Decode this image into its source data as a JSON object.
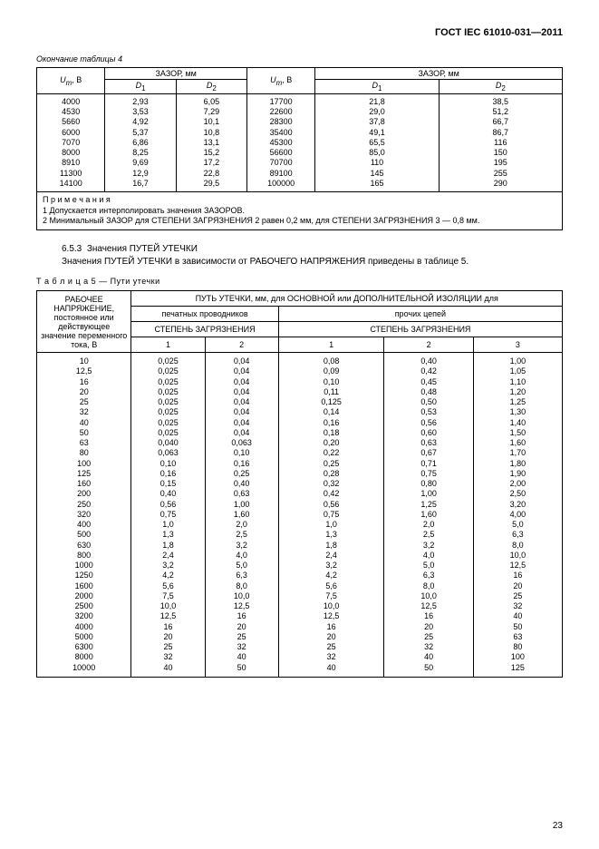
{
  "doc_header": "ГОСТ IEC 61010-031—2011",
  "table4": {
    "caption": "Окончание таблицы 4",
    "col_u": "U",
    "col_u_sub": "m",
    "col_u_unit": ", В",
    "col_gap": "ЗАЗОР, мм",
    "col_d1": "D",
    "col_d1_sub": "1",
    "col_d2": "D",
    "col_d2_sub": "2",
    "rows": [
      [
        "4000",
        "2,93",
        "6,05",
        "17700",
        "21,8",
        "38,5"
      ],
      [
        "4530",
        "3,53",
        "7,29",
        "22600",
        "29,0",
        "51,2"
      ],
      [
        "5660",
        "4,92",
        "10,1",
        "28300",
        "37,8",
        "66,7"
      ],
      [
        "6000",
        "5,37",
        "10,8",
        "35400",
        "49,1",
        "86,7"
      ],
      [
        "7070",
        "6,86",
        "13,1",
        "45300",
        "65,5",
        "116"
      ],
      [
        "8000",
        "8,25",
        "15,2",
        "56600",
        "85,0",
        "150"
      ],
      [
        "8910",
        "9,69",
        "17,2",
        "70700",
        "110",
        "195"
      ],
      [
        "11300",
        "12,9",
        "22,8",
        "89100",
        "145",
        "255"
      ],
      [
        "14100",
        "16,7",
        "29,5",
        "100000",
        "165",
        "290"
      ]
    ],
    "notes_title": "П р и м е ч а н и я",
    "note1": "1 Допускается интерполировать значения ЗАЗОРОВ.",
    "note2": "2 Минимальный ЗАЗОР для СТЕПЕНИ ЗАГРЯЗНЕНИЯ 2 равен 0,2 мм, для СТЕПЕНИ ЗАГРЯЗНЕНИЯ 3 — 0,8 мм."
  },
  "section": {
    "num": "6.5.3",
    "title": "Значения ПУТЕЙ УТЕЧКИ",
    "body": "Значения ПУТЕЙ УТЕЧКИ в зависимости от РАБОЧЕГО НАПРЯЖЕНИЯ приведены в таблице 5."
  },
  "table5": {
    "caption": "Т а б л и ц а  5 — Пути утечки",
    "h_voltage": "РАБОЧЕЕ НАПРЯЖЕНИЕ, постоянное или действующее значение переменного тока, В",
    "h_top": "ПУТЬ УТЕЧКИ, мм, для ОСНОВНОЙ или ДОПОЛНИТЕЛЬНОЙ ИЗОЛЯЦИИ для",
    "h_printed": "печатных проводников",
    "h_other": "прочих цепей",
    "h_pollution": "СТЕПЕНЬ ЗАГРЯЗНЕНИЯ",
    "cols": [
      "1",
      "2",
      "1",
      "2",
      "3"
    ],
    "rows": [
      [
        "10",
        "0,025",
        "0,04",
        "0,08",
        "0,40",
        "1,00"
      ],
      [
        "12,5",
        "0,025",
        "0,04",
        "0,09",
        "0,42",
        "1,05"
      ],
      [
        "16",
        "0,025",
        "0,04",
        "0,10",
        "0,45",
        "1,10"
      ],
      [
        "20",
        "0,025",
        "0,04",
        "0,11",
        "0,48",
        "1,20"
      ],
      [
        "25",
        "0,025",
        "0,04",
        "0,125",
        "0,50",
        "1,25"
      ],
      [
        "32",
        "0,025",
        "0,04",
        "0,14",
        "0,53",
        "1,30"
      ],
      [
        "40",
        "0,025",
        "0,04",
        "0,16",
        "0,56",
        "1,40"
      ],
      [
        "50",
        "0,025",
        "0,04",
        "0,18",
        "0,60",
        "1,50"
      ],
      [
        "63",
        "0,040",
        "0,063",
        "0,20",
        "0,63",
        "1,60"
      ],
      [
        "80",
        "0,063",
        "0,10",
        "0,22",
        "0,67",
        "1,70"
      ],
      [
        "100",
        "0,10",
        "0,16",
        "0,25",
        "0,71",
        "1,80"
      ],
      [
        "125",
        "0,16",
        "0,25",
        "0,28",
        "0,75",
        "1,90"
      ],
      [
        "160",
        "0,15",
        "0,40",
        "0,32",
        "0,80",
        "2,00"
      ],
      [
        "200",
        "0,40",
        "0,63",
        "0,42",
        "1,00",
        "2,50"
      ],
      [
        "250",
        "0,56",
        "1,00",
        "0,56",
        "1,25",
        "3,20"
      ],
      [
        "320",
        "0,75",
        "1,60",
        "0,75",
        "1,60",
        "4,00"
      ],
      [
        "400",
        "1,0",
        "2,0",
        "1,0",
        "2,0",
        "5,0"
      ],
      [
        "500",
        "1,3",
        "2,5",
        "1,3",
        "2,5",
        "6,3"
      ],
      [
        "630",
        "1,8",
        "3,2",
        "1,8",
        "3,2",
        "8,0"
      ],
      [
        "800",
        "2,4",
        "4,0",
        "2,4",
        "4,0",
        "10,0"
      ],
      [
        "1000",
        "3,2",
        "5,0",
        "3,2",
        "5,0",
        "12,5"
      ],
      [
        "1250",
        "4,2",
        "6,3",
        "4,2",
        "6,3",
        "16"
      ],
      [
        "1600",
        "5,6",
        "8,0",
        "5,6",
        "8,0",
        "20"
      ],
      [
        "2000",
        "7,5",
        "10,0",
        "7,5",
        "10,0",
        "25"
      ],
      [
        "2500",
        "10,0",
        "12,5",
        "10,0",
        "12,5",
        "32"
      ],
      [
        "3200",
        "12,5",
        "16",
        "12,5",
        "16",
        "40"
      ],
      [
        "4000",
        "16",
        "20",
        "16",
        "20",
        "50"
      ],
      [
        "5000",
        "20",
        "25",
        "20",
        "25",
        "63"
      ],
      [
        "6300",
        "25",
        "32",
        "25",
        "32",
        "80"
      ],
      [
        "8000",
        "32",
        "40",
        "32",
        "40",
        "100"
      ],
      [
        "10000",
        "40",
        "50",
        "40",
        "50",
        "125"
      ]
    ]
  },
  "page_number": "23"
}
